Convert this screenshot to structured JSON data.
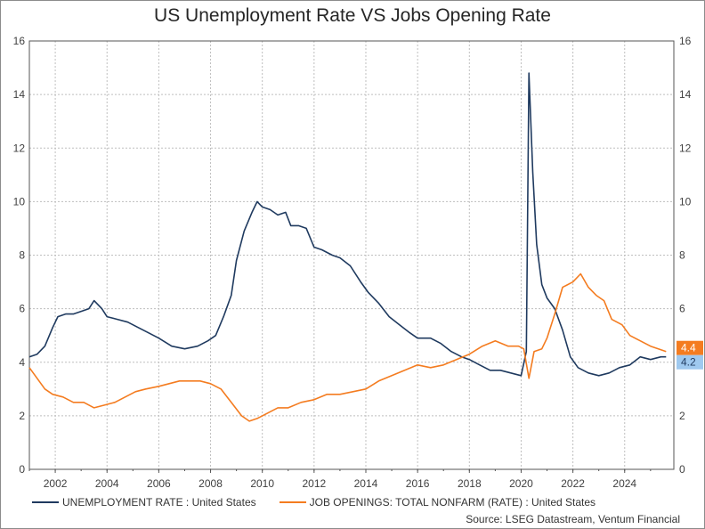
{
  "title": "US Unemployment Rate VS Jobs Opening Rate",
  "source": "Source: LSEG Datastream, Ventum Financial",
  "colors": {
    "unemployment": "#1f3a5f",
    "job_openings": "#f47c20",
    "grid": "#bfbfbf",
    "axis": "#555555"
  },
  "chart_data": {
    "type": "line",
    "title": "US Unemployment Rate VS Jobs Opening Rate",
    "xlabel": "",
    "ylabel": "",
    "xlim": [
      2001.0,
      2025.9
    ],
    "ylim": [
      0,
      16
    ],
    "y_ticks": [
      0,
      2,
      4,
      6,
      8,
      10,
      12,
      14,
      16
    ],
    "x_ticks": [
      2002,
      2004,
      2006,
      2008,
      2010,
      2012,
      2014,
      2016,
      2018,
      2020,
      2022,
      2024
    ],
    "grid": true,
    "legend_position": "bottom",
    "series": [
      {
        "name": "UNEMPLOYMENT RATE : United States",
        "end_label": "4.2",
        "points": [
          [
            2001.0,
            4.2
          ],
          [
            2001.3,
            4.3
          ],
          [
            2001.6,
            4.6
          ],
          [
            2001.9,
            5.3
          ],
          [
            2002.1,
            5.7
          ],
          [
            2002.4,
            5.8
          ],
          [
            2002.7,
            5.8
          ],
          [
            2003.0,
            5.9
          ],
          [
            2003.3,
            6.0
          ],
          [
            2003.5,
            6.3
          ],
          [
            2003.8,
            6.0
          ],
          [
            2004.0,
            5.7
          ],
          [
            2004.4,
            5.6
          ],
          [
            2004.8,
            5.5
          ],
          [
            2005.2,
            5.3
          ],
          [
            2005.6,
            5.1
          ],
          [
            2006.0,
            4.9
          ],
          [
            2006.5,
            4.6
          ],
          [
            2007.0,
            4.5
          ],
          [
            2007.5,
            4.6
          ],
          [
            2007.9,
            4.8
          ],
          [
            2008.2,
            5.0
          ],
          [
            2008.5,
            5.7
          ],
          [
            2008.8,
            6.5
          ],
          [
            2009.0,
            7.8
          ],
          [
            2009.3,
            8.9
          ],
          [
            2009.6,
            9.6
          ],
          [
            2009.8,
            10.0
          ],
          [
            2010.0,
            9.8
          ],
          [
            2010.3,
            9.7
          ],
          [
            2010.6,
            9.5
          ],
          [
            2010.9,
            9.6
          ],
          [
            2011.1,
            9.1
          ],
          [
            2011.4,
            9.1
          ],
          [
            2011.7,
            9.0
          ],
          [
            2012.0,
            8.3
          ],
          [
            2012.3,
            8.2
          ],
          [
            2012.7,
            8.0
          ],
          [
            2013.0,
            7.9
          ],
          [
            2013.4,
            7.6
          ],
          [
            2013.8,
            7.0
          ],
          [
            2014.1,
            6.6
          ],
          [
            2014.5,
            6.2
          ],
          [
            2014.9,
            5.7
          ],
          [
            2015.3,
            5.4
          ],
          [
            2015.7,
            5.1
          ],
          [
            2016.0,
            4.9
          ],
          [
            2016.5,
            4.9
          ],
          [
            2016.9,
            4.7
          ],
          [
            2017.3,
            4.4
          ],
          [
            2017.7,
            4.2
          ],
          [
            2018.0,
            4.1
          ],
          [
            2018.4,
            3.9
          ],
          [
            2018.8,
            3.7
          ],
          [
            2019.2,
            3.7
          ],
          [
            2019.6,
            3.6
          ],
          [
            2020.0,
            3.5
          ],
          [
            2020.2,
            4.4
          ],
          [
            2020.3,
            14.8
          ],
          [
            2020.45,
            11.1
          ],
          [
            2020.6,
            8.4
          ],
          [
            2020.8,
            6.9
          ],
          [
            2021.0,
            6.4
          ],
          [
            2021.3,
            6.0
          ],
          [
            2021.6,
            5.2
          ],
          [
            2021.9,
            4.2
          ],
          [
            2022.2,
            3.8
          ],
          [
            2022.6,
            3.6
          ],
          [
            2023.0,
            3.5
          ],
          [
            2023.4,
            3.6
          ],
          [
            2023.8,
            3.8
          ],
          [
            2024.2,
            3.9
          ],
          [
            2024.6,
            4.2
          ],
          [
            2025.0,
            4.1
          ],
          [
            2025.4,
            4.2
          ],
          [
            2025.6,
            4.2
          ]
        ]
      },
      {
        "name": "JOB OPENINGS: TOTAL NONFARM (RATE) : United States",
        "end_label": "4.4",
        "points": [
          [
            2001.0,
            3.8
          ],
          [
            2001.3,
            3.4
          ],
          [
            2001.6,
            3.0
          ],
          [
            2001.9,
            2.8
          ],
          [
            2002.3,
            2.7
          ],
          [
            2002.7,
            2.5
          ],
          [
            2003.1,
            2.5
          ],
          [
            2003.5,
            2.3
          ],
          [
            2003.9,
            2.4
          ],
          [
            2004.3,
            2.5
          ],
          [
            2004.7,
            2.7
          ],
          [
            2005.1,
            2.9
          ],
          [
            2005.5,
            3.0
          ],
          [
            2006.0,
            3.1
          ],
          [
            2006.4,
            3.2
          ],
          [
            2006.8,
            3.3
          ],
          [
            2007.2,
            3.3
          ],
          [
            2007.6,
            3.3
          ],
          [
            2008.0,
            3.2
          ],
          [
            2008.4,
            3.0
          ],
          [
            2008.8,
            2.5
          ],
          [
            2009.2,
            2.0
          ],
          [
            2009.5,
            1.8
          ],
          [
            2009.8,
            1.9
          ],
          [
            2010.2,
            2.1
          ],
          [
            2010.6,
            2.3
          ],
          [
            2011.0,
            2.3
          ],
          [
            2011.5,
            2.5
          ],
          [
            2012.0,
            2.6
          ],
          [
            2012.5,
            2.8
          ],
          [
            2013.0,
            2.8
          ],
          [
            2013.5,
            2.9
          ],
          [
            2014.0,
            3.0
          ],
          [
            2014.5,
            3.3
          ],
          [
            2015.0,
            3.5
          ],
          [
            2015.5,
            3.7
          ],
          [
            2016.0,
            3.9
          ],
          [
            2016.5,
            3.8
          ],
          [
            2017.0,
            3.9
          ],
          [
            2017.5,
            4.1
          ],
          [
            2018.0,
            4.3
          ],
          [
            2018.5,
            4.6
          ],
          [
            2019.0,
            4.8
          ],
          [
            2019.5,
            4.6
          ],
          [
            2019.9,
            4.6
          ],
          [
            2020.1,
            4.5
          ],
          [
            2020.3,
            3.4
          ],
          [
            2020.5,
            4.4
          ],
          [
            2020.8,
            4.5
          ],
          [
            2021.0,
            4.9
          ],
          [
            2021.3,
            5.8
          ],
          [
            2021.6,
            6.8
          ],
          [
            2022.0,
            7.0
          ],
          [
            2022.3,
            7.3
          ],
          [
            2022.6,
            6.8
          ],
          [
            2022.9,
            6.5
          ],
          [
            2023.2,
            6.3
          ],
          [
            2023.5,
            5.6
          ],
          [
            2023.9,
            5.4
          ],
          [
            2024.2,
            5.0
          ],
          [
            2024.6,
            4.8
          ],
          [
            2025.0,
            4.6
          ],
          [
            2025.3,
            4.5
          ],
          [
            2025.6,
            4.4
          ]
        ]
      }
    ]
  }
}
